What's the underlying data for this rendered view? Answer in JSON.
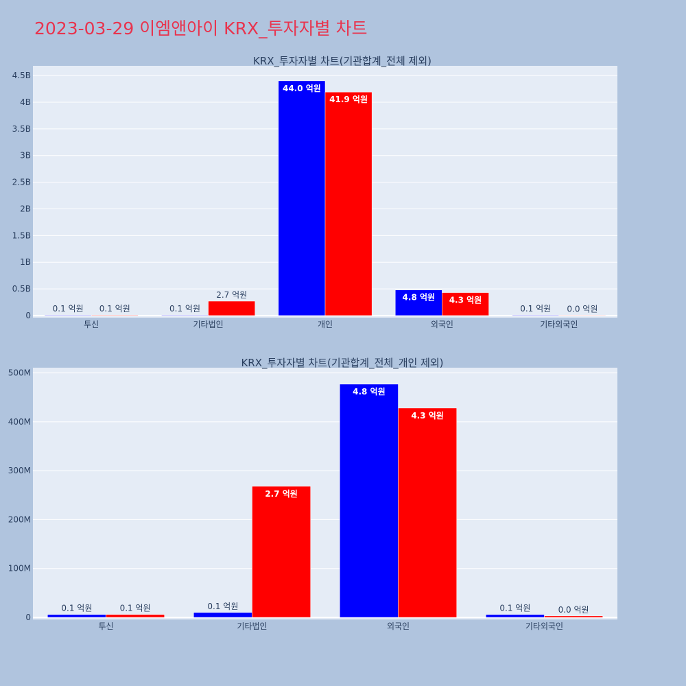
{
  "page_title": "2023-03-29 이엠앤아이 KRX_투자자별 차트",
  "colors": {
    "background": "#b0c4de",
    "plot_bg": "#e5ecf6",
    "title": "#e8344e",
    "series_a": "#0000ff",
    "series_b": "#ff0000"
  },
  "chart_data": [
    {
      "type": "bar",
      "title": "KRX_투자자별 차트(기관합계_전체 제외)",
      "categories": [
        "투신",
        "기타법인",
        "개인",
        "외국인",
        "기타외국인"
      ],
      "series": [
        {
          "values": [
            0.01,
            0.01,
            4.4,
            0.48,
            0.01
          ],
          "labels": [
            "0.1 억원",
            "0.1 억원",
            "44.0 억원",
            "4.8 억원",
            "0.1 억원"
          ],
          "color": "#0000ff"
        },
        {
          "values": [
            0.01,
            0.27,
            4.19,
            0.43,
            0.0
          ],
          "labels": [
            "0.1 억원",
            "2.7 억원",
            "41.9 억원",
            "4.3 억원",
            "0.0 억원"
          ],
          "color": "#ff0000"
        }
      ],
      "y_ticks": [
        {
          "value": 0,
          "label": "0"
        },
        {
          "value": 0.5,
          "label": "0.5B"
        },
        {
          "value": 1,
          "label": "1B"
        },
        {
          "value": 1.5,
          "label": "1.5B"
        },
        {
          "value": 2,
          "label": "2B"
        },
        {
          "value": 2.5,
          "label": "2.5B"
        },
        {
          "value": 3,
          "label": "3B"
        },
        {
          "value": 3.5,
          "label": "3.5B"
        },
        {
          "value": 4,
          "label": "4B"
        },
        {
          "value": 4.5,
          "label": "4.5B"
        }
      ],
      "ylim": [
        0,
        4.63
      ],
      "y_unit": "B",
      "grid": true
    },
    {
      "type": "bar",
      "title": "KRX_투자자별 차트(기관합계_전체_개인 제외)",
      "categories": [
        "투신",
        "기타법인",
        "외국인",
        "기타외국인"
      ],
      "series": [
        {
          "values": [
            6,
            10,
            477,
            6
          ],
          "labels": [
            "0.1 억원",
            "0.1 억원",
            "4.8 억원",
            "0.1 억원"
          ],
          "color": "#0000ff"
        },
        {
          "values": [
            6,
            268,
            428,
            3
          ],
          "labels": [
            "0.1 억원",
            "2.7 억원",
            "4.3 억원",
            "0.0 억원"
          ],
          "color": "#ff0000"
        }
      ],
      "y_ticks": [
        {
          "value": 0,
          "label": "0"
        },
        {
          "value": 100,
          "label": "100M"
        },
        {
          "value": 200,
          "label": "200M"
        },
        {
          "value": 300,
          "label": "300M"
        },
        {
          "value": 400,
          "label": "400M"
        },
        {
          "value": 500,
          "label": "500M"
        }
      ],
      "ylim": [
        0,
        505
      ],
      "y_unit": "M",
      "grid": true
    }
  ]
}
